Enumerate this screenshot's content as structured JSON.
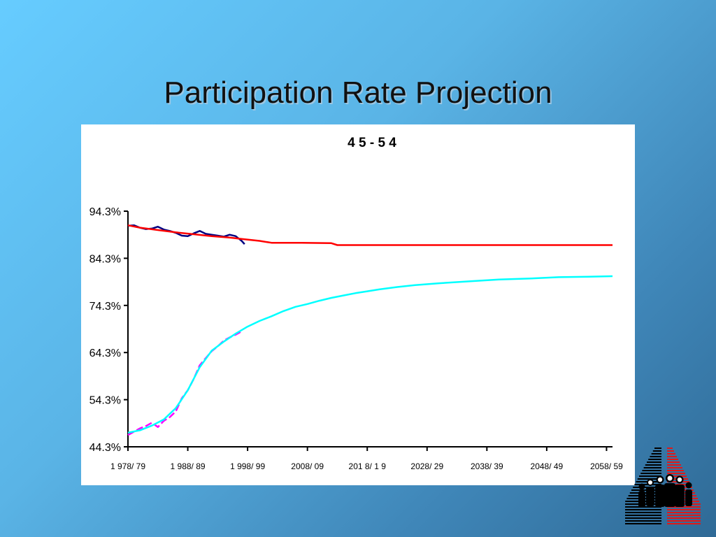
{
  "slide": {
    "title": "Participation Rate Projection"
  },
  "chart_data": {
    "type": "line",
    "title": "4 5 - 5 4",
    "xlabel": "",
    "ylabel": "",
    "x_ticks": [
      "1 978/ 79",
      "1 988/ 89",
      "1 998/ 99",
      "2008/ 09",
      "201 8/ 1 9",
      "2028/ 29",
      "2038/ 39",
      "2048/ 49",
      "2058/ 59"
    ],
    "y_ticks": [
      "94.3%",
      "84.3%",
      "74.3%",
      "64.3%",
      "54.3%",
      "44.3%"
    ],
    "ylim": [
      44.3,
      94.3
    ],
    "xlim": [
      1978,
      2059
    ],
    "grid": false,
    "series": [
      {
        "color": "#000080",
        "points": [
          [
            1978,
            91.2
          ],
          [
            1979,
            91.3
          ],
          [
            1980,
            90.8
          ],
          [
            1981,
            90.5
          ],
          [
            1982,
            90.6
          ],
          [
            1983,
            91.0
          ],
          [
            1984,
            90.4
          ],
          [
            1985,
            90.1
          ],
          [
            1986,
            89.7
          ],
          [
            1987,
            89.1
          ],
          [
            1988,
            89.0
          ],
          [
            1989,
            89.6
          ],
          [
            1990,
            90.1
          ],
          [
            1991,
            89.5
          ],
          [
            1992,
            89.3
          ],
          [
            1993,
            89.1
          ],
          [
            1994,
            88.9
          ],
          [
            1995,
            89.3
          ],
          [
            1996,
            89.0
          ],
          [
            1997,
            88.0
          ],
          [
            1997.5,
            87.3
          ]
        ]
      },
      {
        "color": "#ff00ff",
        "points": [
          [
            1978,
            46.8
          ],
          [
            1979,
            47.5
          ],
          [
            1980,
            48.2
          ],
          [
            1981,
            48.7
          ],
          [
            1982,
            49.4
          ],
          [
            1983,
            48.5
          ],
          [
            1984,
            49.8
          ],
          [
            1985,
            50.6
          ],
          [
            1986,
            51.8
          ],
          [
            1987,
            54.6
          ],
          [
            1988,
            56.3
          ],
          [
            1989,
            58.7
          ],
          [
            1990,
            61.6
          ],
          [
            1991,
            63.1
          ],
          [
            1992,
            64.6
          ],
          [
            1993,
            65.6
          ],
          [
            1994,
            66.8
          ],
          [
            1995,
            67.5
          ],
          [
            1996,
            68.1
          ],
          [
            1997,
            68.8
          ]
        ]
      },
      {
        "color": "#ff0000",
        "points": [
          [
            1978,
            91.3
          ],
          [
            1980,
            90.8
          ],
          [
            1983,
            90.3
          ],
          [
            1986,
            89.8
          ],
          [
            1989,
            89.4
          ],
          [
            1992,
            89.0
          ],
          [
            1995,
            88.7
          ],
          [
            1997,
            88.4
          ],
          [
            2000,
            88.0
          ],
          [
            2002,
            87.6
          ],
          [
            2007,
            87.6
          ],
          [
            2012,
            87.5
          ],
          [
            2013,
            87.1
          ],
          [
            2059,
            87.1
          ]
        ]
      },
      {
        "color": "#00ffff",
        "points": [
          [
            1978,
            47.3
          ],
          [
            1980,
            47.8
          ],
          [
            1982,
            48.8
          ],
          [
            1984,
            50.1
          ],
          [
            1986,
            52.5
          ],
          [
            1988,
            56.3
          ],
          [
            1990,
            61.2
          ],
          [
            1992,
            64.7
          ],
          [
            1994,
            66.6
          ],
          [
            1996,
            68.3
          ],
          [
            1998,
            69.8
          ],
          [
            2000,
            71.0
          ],
          [
            2002,
            72.0
          ],
          [
            2004,
            73.1
          ],
          [
            2006,
            74.0
          ],
          [
            2008,
            74.6
          ],
          [
            2010,
            75.3
          ],
          [
            2012,
            75.9
          ],
          [
            2014,
            76.4
          ],
          [
            2016,
            76.9
          ],
          [
            2018,
            77.3
          ],
          [
            2020,
            77.7
          ],
          [
            2023,
            78.2
          ],
          [
            2026,
            78.6
          ],
          [
            2030,
            79.0
          ],
          [
            2035,
            79.4
          ],
          [
            2040,
            79.8
          ],
          [
            2045,
            80.0
          ],
          [
            2050,
            80.3
          ],
          [
            2055,
            80.4
          ],
          [
            2059,
            80.5
          ]
        ]
      }
    ]
  }
}
